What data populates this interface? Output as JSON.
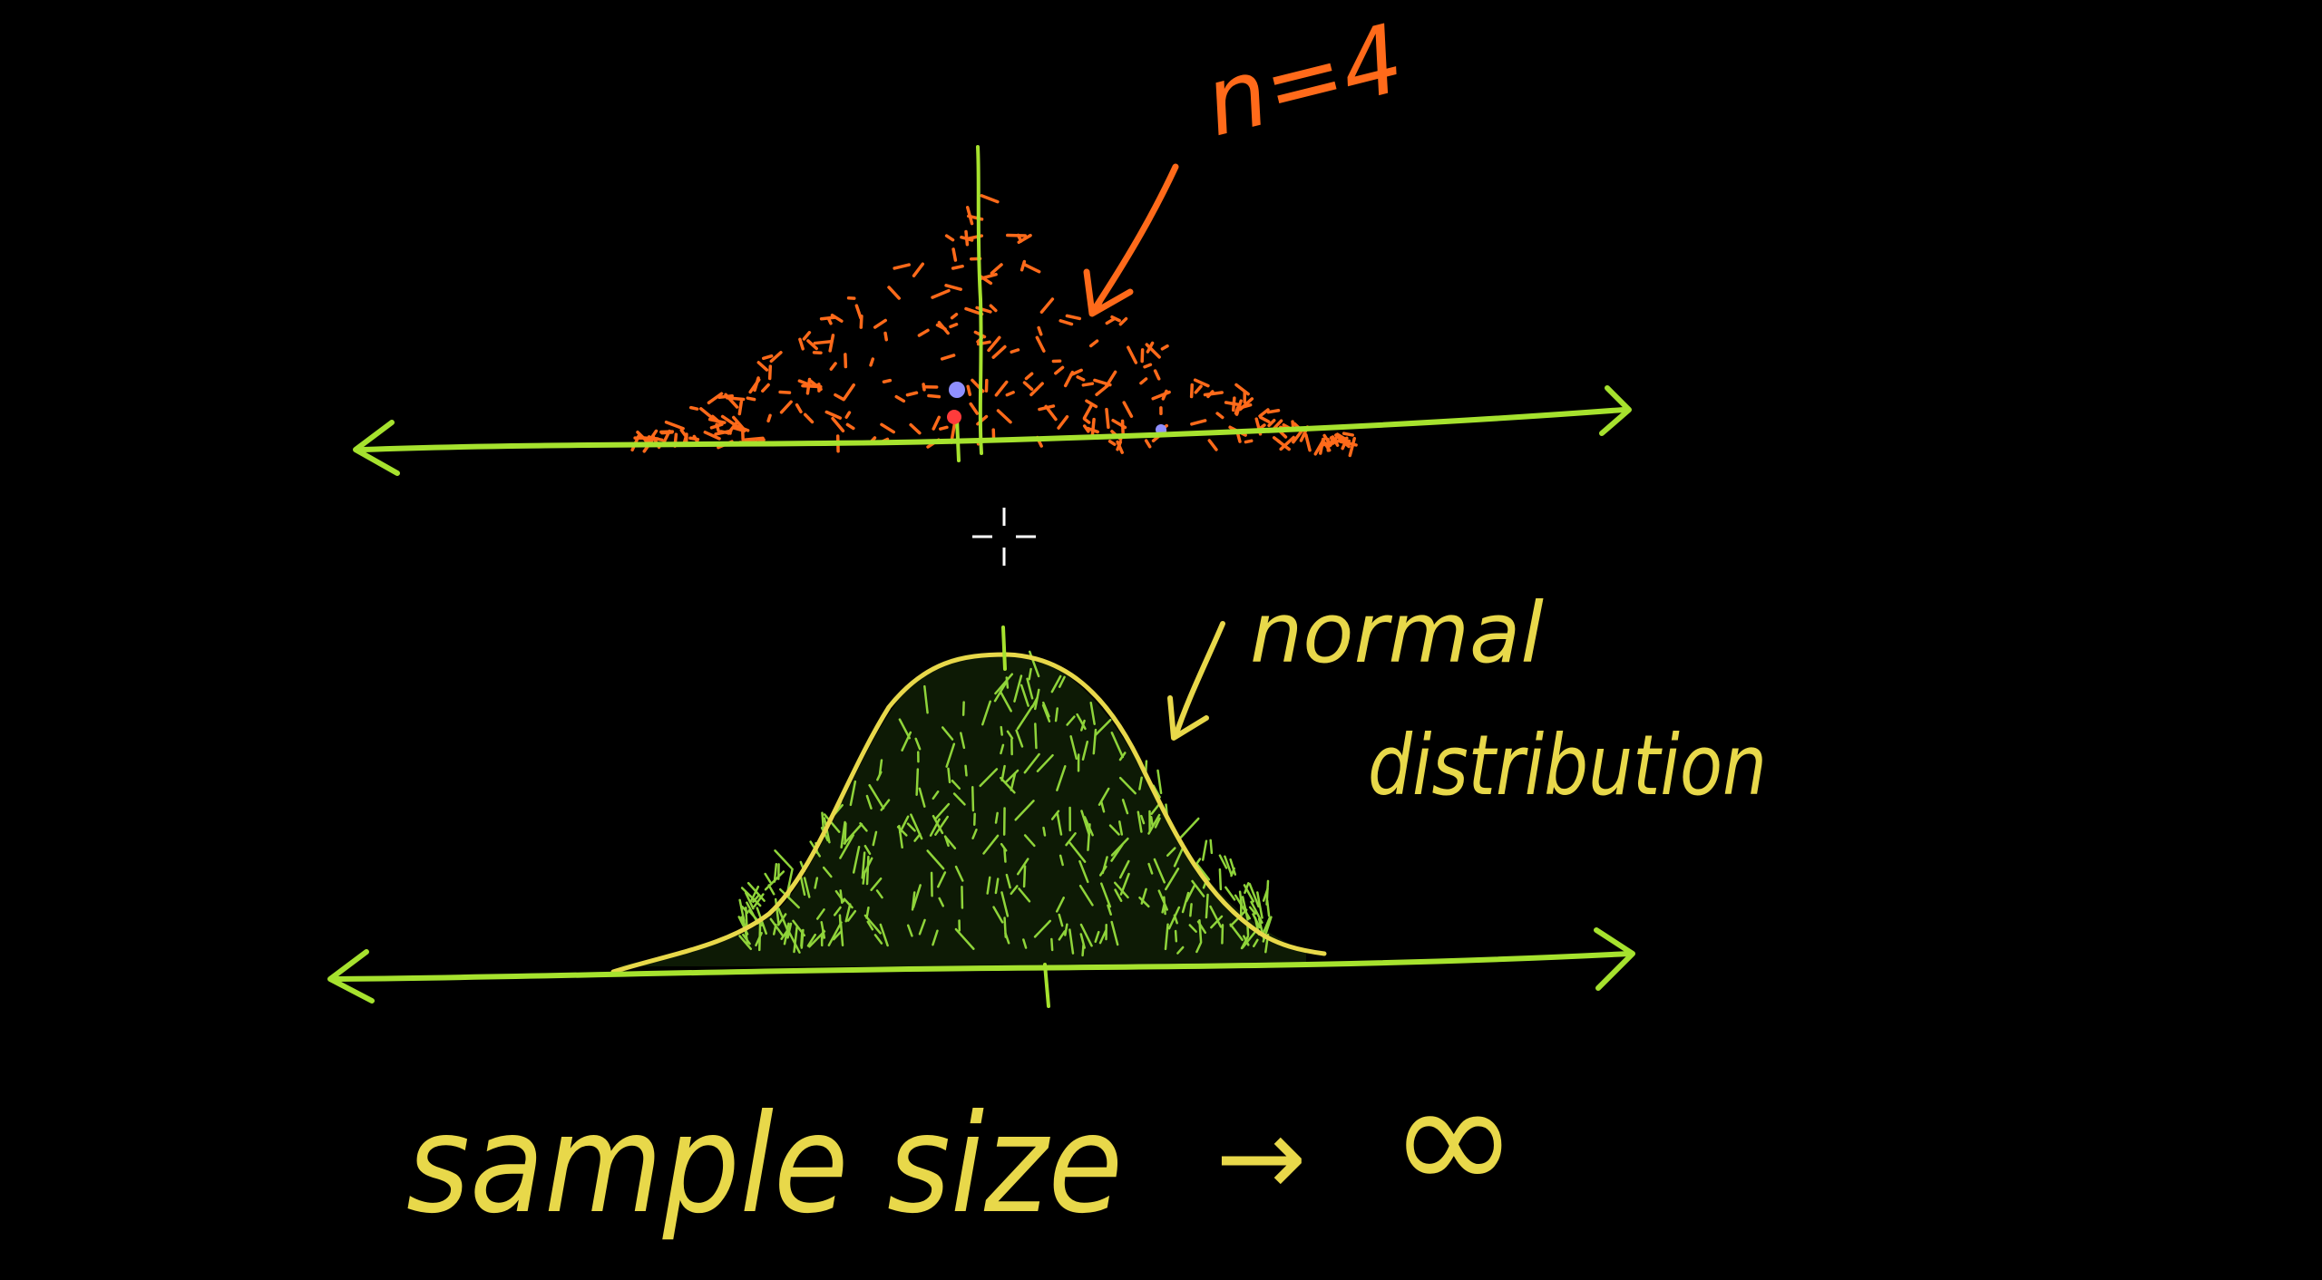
{
  "canvas": {
    "background": "#000000"
  },
  "top_plot": {
    "axis_color": "#a6e22e",
    "dots_color": "#ff6a1a",
    "highlight_colors": [
      "#8f8fff",
      "#ff3b3b"
    ],
    "label": "n=4",
    "label_color": "#ff6a1a"
  },
  "bottom_plot": {
    "axis_color": "#a6e22e",
    "curve_color": "#e8d84a",
    "fill_color": "#8fd43a",
    "label_line1": "normal",
    "label_line2": "distribution",
    "label_color": "#e8d84a"
  },
  "caption": {
    "text": "sample size",
    "arrow": "→",
    "infinity": "∞",
    "color": "#e8d84a"
  },
  "cursor": {
    "icon": "crosshair-icon",
    "color": "#ffffff"
  }
}
